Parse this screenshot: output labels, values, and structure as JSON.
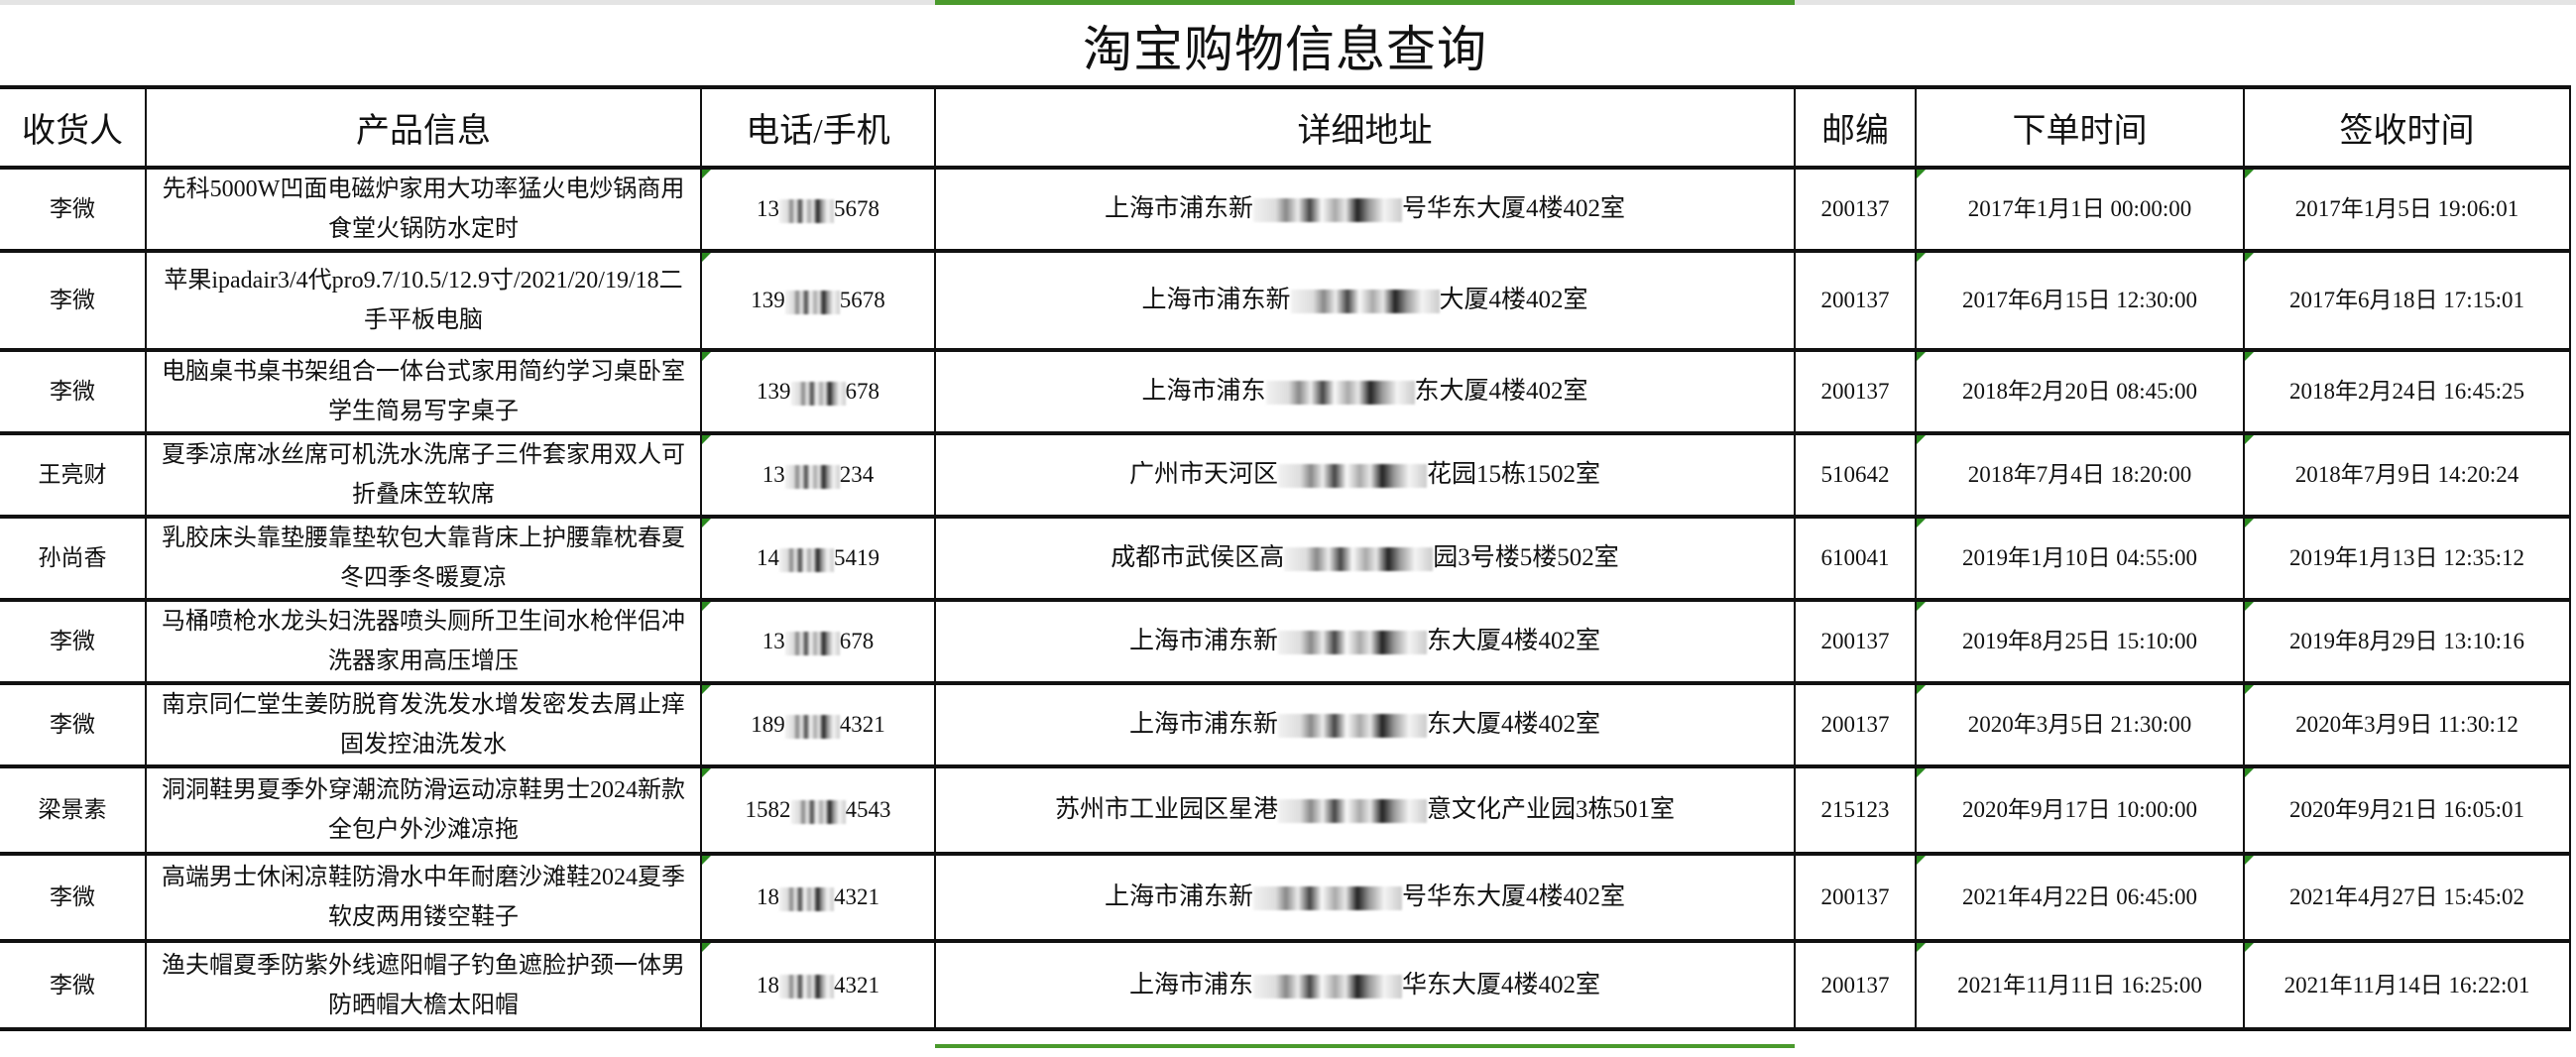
{
  "title": "淘宝购物信息查询",
  "colors": {
    "selection": "#4a9a2c",
    "cell_marker": "#2a8a1e",
    "grid": "#111111"
  },
  "headers": [
    "收货人",
    "产品信息",
    "电话/手机",
    "详细地址",
    "邮编",
    "下单时间",
    "签收时间"
  ],
  "rows": [
    {
      "name": "李微",
      "product": "先科5000W凹面电磁炉家用大功率猛火电炒锅商用食堂火锅防水定时",
      "phone_pre": "13",
      "phone_post": "5678",
      "addr_pre": "上海市浦东新",
      "addr_post": "号华东大厦4楼402室",
      "zip": "200137",
      "order": "2017年1月1日 00:00:00",
      "sign": "2017年1月5日 19:06:01"
    },
    {
      "name": "李微",
      "product": "苹果ipadair3/4代pro9.7/10.5/12.9寸/2021/20/19/18二手平板电脑",
      "phone_pre": "139",
      "phone_post": "5678",
      "addr_pre": "上海市浦东新",
      "addr_post": "大厦4楼402室",
      "zip": "200137",
      "order": "2017年6月15日 12:30:00",
      "sign": "2017年6月18日 17:15:01"
    },
    {
      "name": "李微",
      "product": "电脑桌书桌书架组合一体台式家用简约学习桌卧室学生简易写字桌子",
      "phone_pre": "139",
      "phone_post": "678",
      "addr_pre": "上海市浦东",
      "addr_post": "东大厦4楼402室",
      "zip": "200137",
      "order": "2018年2月20日 08:45:00",
      "sign": "2018年2月24日 16:45:25"
    },
    {
      "name": "王亮财",
      "product": "夏季凉席冰丝席可机洗水洗席子三件套家用双人可折叠床笠软席",
      "phone_pre": "13",
      "phone_post": "234",
      "addr_pre": "广州市天河区",
      "addr_post": "花园15栋1502室",
      "zip": "510642",
      "order": "2018年7月4日 18:20:00",
      "sign": "2018年7月9日 14:20:24"
    },
    {
      "name": "孙尚香",
      "product": "乳胶床头靠垫腰靠垫软包大靠背床上护腰靠枕春夏冬四季冬暖夏凉",
      "phone_pre": "14",
      "phone_post": "5419",
      "addr_pre": "成都市武侯区高",
      "addr_post": "园3号楼5楼502室",
      "zip": "610041",
      "order": "2019年1月10日 04:55:00",
      "sign": "2019年1月13日 12:35:12"
    },
    {
      "name": "李微",
      "product": "马桶喷枪水龙头妇洗器喷头厕所卫生间水枪伴侣冲洗器家用高压增压",
      "phone_pre": "13",
      "phone_post": "678",
      "addr_pre": "上海市浦东新",
      "addr_post": "东大厦4楼402室",
      "zip": "200137",
      "order": "2019年8月25日 15:10:00",
      "sign": "2019年8月29日 13:10:16"
    },
    {
      "name": "李微",
      "product": "南京同仁堂生姜防脱育发洗发水增发密发去屑止痒固发控油洗发水",
      "phone_pre": "189",
      "phone_post": "4321",
      "addr_pre": "上海市浦东新",
      "addr_post": "东大厦4楼402室",
      "zip": "200137",
      "order": "2020年3月5日 21:30:00",
      "sign": "2020年3月9日 11:30:12"
    },
    {
      "name": "梁景素",
      "product": "洞洞鞋男夏季外穿潮流防滑运动凉鞋男士2024新款全包户外沙滩凉拖",
      "phone_pre": "1582",
      "phone_post": "4543",
      "addr_pre": "苏州市工业园区星港",
      "addr_post": "意文化产业园3栋501室",
      "zip": "215123",
      "order": "2020年9月17日 10:00:00",
      "sign": "2020年9月21日 16:05:01"
    },
    {
      "name": "李微",
      "product": "高端男士休闲凉鞋防滑水中年耐磨沙滩鞋2024夏季软皮两用镂空鞋子",
      "phone_pre": "18",
      "phone_post": "4321",
      "addr_pre": "上海市浦东新",
      "addr_post": "号华东大厦4楼402室",
      "zip": "200137",
      "order": "2021年4月22日 06:45:00",
      "sign": "2021年4月27日 15:45:02"
    },
    {
      "name": "李微",
      "product": "渔夫帽夏季防紫外线遮阳帽子钓鱼遮脸护颈一体男防晒帽大檐太阳帽",
      "phone_pre": "18",
      "phone_post": "4321",
      "addr_pre": "上海市浦东",
      "addr_post": "华东大厦4楼402室",
      "zip": "200137",
      "order": "2021年11月11日 16:25:00",
      "sign": "2021年11月14日 16:22:01"
    }
  ]
}
